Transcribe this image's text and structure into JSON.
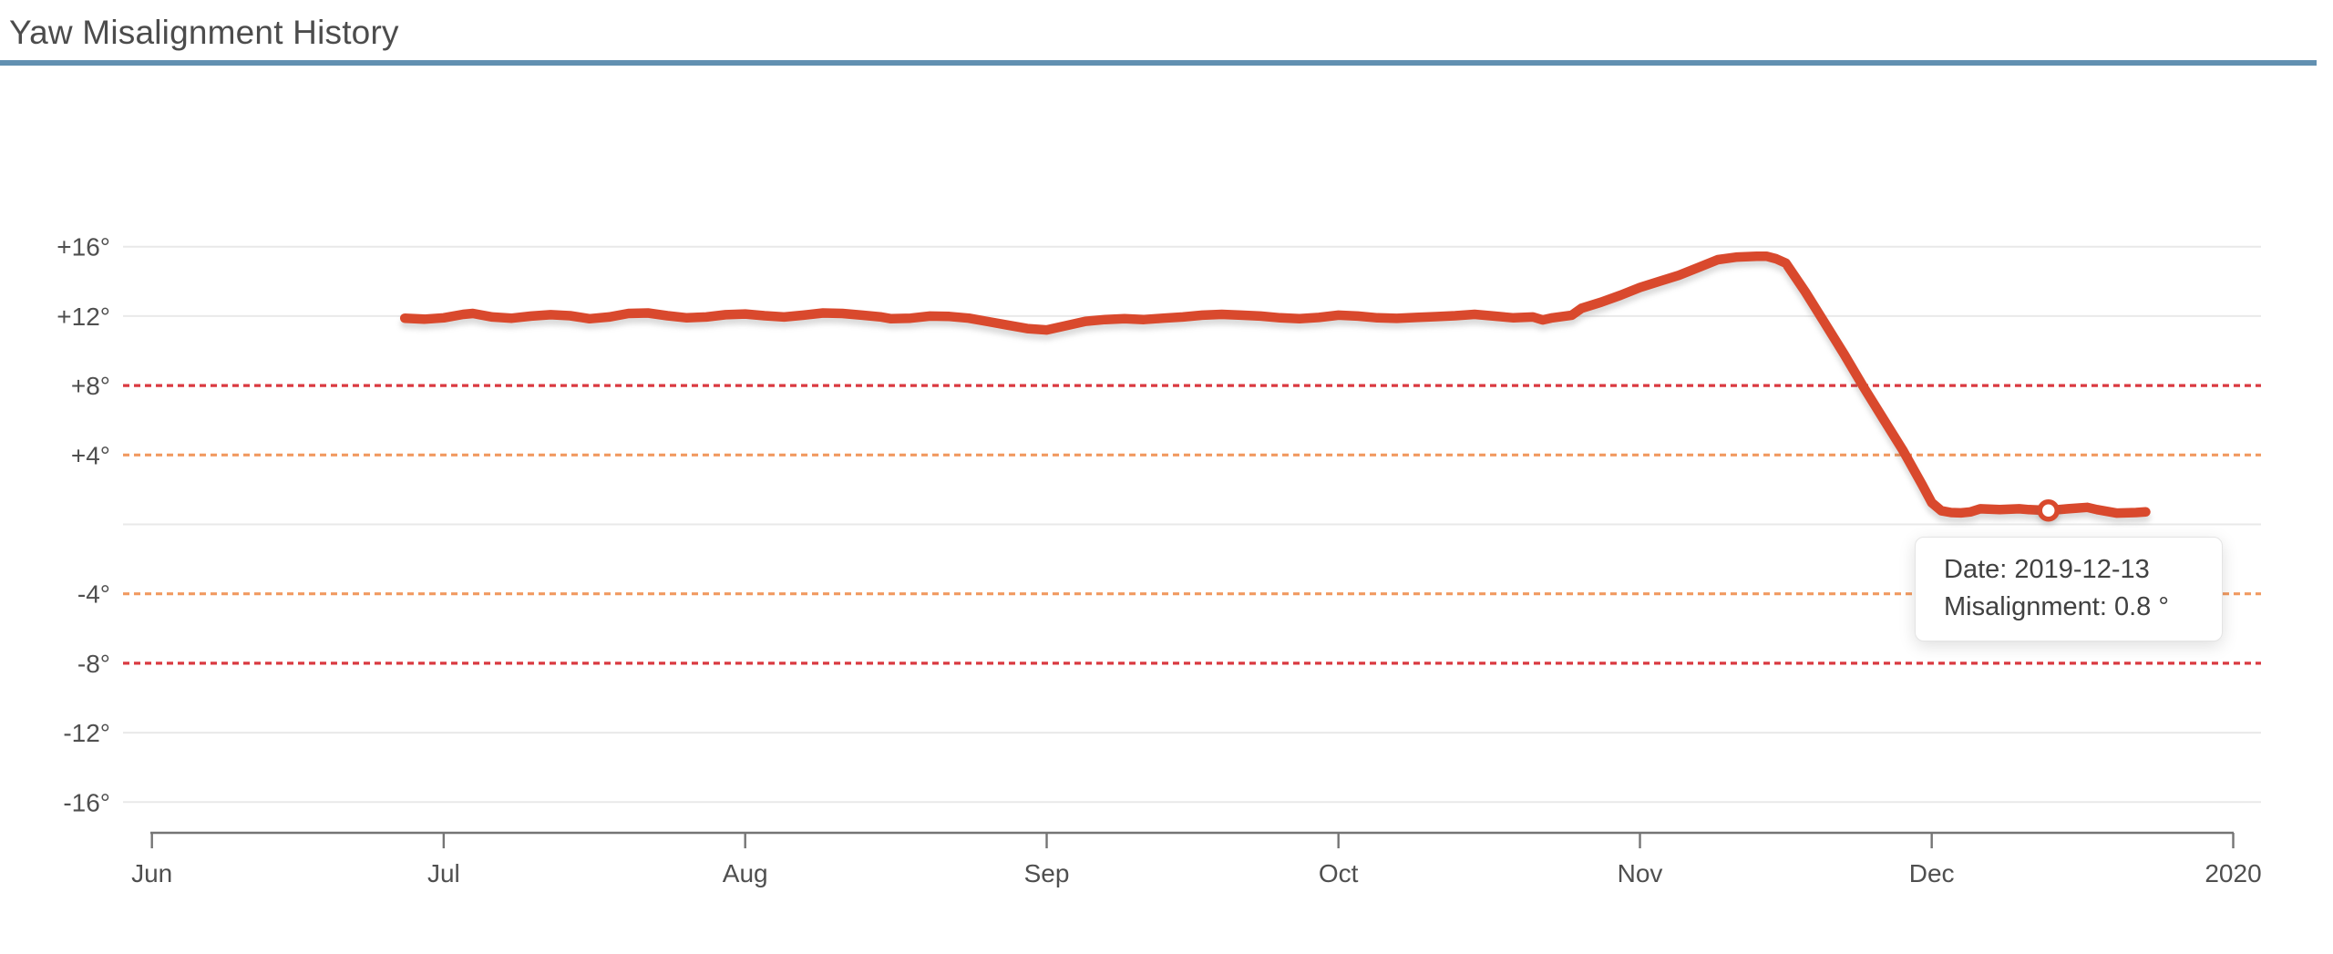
{
  "page": {
    "title": "Yaw Misalignment History"
  },
  "colors": {
    "title_underline": "#6290b1",
    "series_line": "#d9492d",
    "threshold_red": "#da3a41",
    "threshold_orange": "#f19a61",
    "gridline": "#e9e9e9",
    "axis": "#757575",
    "tick_label_text": "#4f4f4f",
    "title_text": "#4c4c4c",
    "tooltip_text": "#414141"
  },
  "chart_data": {
    "type": "line",
    "title": "Yaw Misalignment History",
    "x_axis": {
      "unit": "date",
      "start": "2019-06-01",
      "end": "2020-01-01",
      "ticks": [
        {
          "day": 0,
          "label": "Jun"
        },
        {
          "day": 30,
          "label": "Jul"
        },
        {
          "day": 61,
          "label": "Aug"
        },
        {
          "day": 92,
          "label": "Sep"
        },
        {
          "day": 122,
          "label": "Oct"
        },
        {
          "day": 153,
          "label": "Nov"
        },
        {
          "day": 183,
          "label": "Dec"
        },
        {
          "day": 214,
          "label": "2020"
        }
      ]
    },
    "y_axis": {
      "unit": "degrees",
      "min": -16,
      "max": 16,
      "ticks": [
        {
          "value": 16,
          "label": "+16°"
        },
        {
          "value": 12,
          "label": "+12°"
        },
        {
          "value": 8,
          "label": "+8°"
        },
        {
          "value": 4,
          "label": "+4°"
        },
        {
          "value": -4,
          "label": "-4°"
        },
        {
          "value": -8,
          "label": "-8°"
        },
        {
          "value": -12,
          "label": "-12°"
        },
        {
          "value": -16,
          "label": "-16°"
        }
      ]
    },
    "gridline_values": [
      16,
      12,
      0,
      -12,
      -16
    ],
    "thresholds": [
      {
        "value": 8,
        "color": "#da3a41",
        "style": "dashed"
      },
      {
        "value": 4,
        "color": "#f19a61",
        "style": "dashed"
      },
      {
        "value": -4,
        "color": "#f19a61",
        "style": "dashed"
      },
      {
        "value": -8,
        "color": "#da3a41",
        "style": "dashed"
      }
    ],
    "series": [
      {
        "name": "Yaw misalignment",
        "color": "#d9492d",
        "points": [
          [
            26,
            11.88
          ],
          [
            28,
            11.82
          ],
          [
            30,
            11.9
          ],
          [
            32,
            12.1
          ],
          [
            33,
            12.15
          ],
          [
            35,
            11.95
          ],
          [
            37,
            11.88
          ],
          [
            39,
            12.0
          ],
          [
            41,
            12.08
          ],
          [
            43,
            12.02
          ],
          [
            45,
            11.85
          ],
          [
            47,
            11.95
          ],
          [
            49,
            12.15
          ],
          [
            51,
            12.18
          ],
          [
            53,
            12.02
          ],
          [
            55,
            11.9
          ],
          [
            57,
            11.95
          ],
          [
            59,
            12.08
          ],
          [
            61,
            12.12
          ],
          [
            63,
            12.02
          ],
          [
            65,
            11.95
          ],
          [
            67,
            12.05
          ],
          [
            69,
            12.18
          ],
          [
            71,
            12.15
          ],
          [
            73,
            12.05
          ],
          [
            75,
            11.95
          ],
          [
            76,
            11.85
          ],
          [
            78,
            11.88
          ],
          [
            80,
            12.0
          ],
          [
            82,
            11.98
          ],
          [
            84,
            11.88
          ],
          [
            86,
            11.68
          ],
          [
            88,
            11.48
          ],
          [
            90,
            11.28
          ],
          [
            92,
            11.2
          ],
          [
            94,
            11.45
          ],
          [
            96,
            11.7
          ],
          [
            98,
            11.8
          ],
          [
            100,
            11.85
          ],
          [
            102,
            11.8
          ],
          [
            104,
            11.88
          ],
          [
            106,
            11.95
          ],
          [
            108,
            12.05
          ],
          [
            110,
            12.1
          ],
          [
            112,
            12.05
          ],
          [
            114,
            12.0
          ],
          [
            116,
            11.9
          ],
          [
            118,
            11.85
          ],
          [
            120,
            11.92
          ],
          [
            122,
            12.05
          ],
          [
            124,
            12.0
          ],
          [
            126,
            11.9
          ],
          [
            128,
            11.87
          ],
          [
            130,
            11.92
          ],
          [
            132,
            11.97
          ],
          [
            134,
            12.02
          ],
          [
            136,
            12.1
          ],
          [
            138,
            12.0
          ],
          [
            140,
            11.9
          ],
          [
            142,
            11.95
          ],
          [
            143,
            11.78
          ],
          [
            144,
            11.9
          ],
          [
            146,
            12.05
          ],
          [
            147,
            12.45
          ],
          [
            149,
            12.8
          ],
          [
            151,
            13.2
          ],
          [
            153,
            13.65
          ],
          [
            155,
            14.0
          ],
          [
            157,
            14.35
          ],
          [
            159,
            14.8
          ],
          [
            161,
            15.25
          ],
          [
            163,
            15.4
          ],
          [
            165,
            15.45
          ],
          [
            166,
            15.45
          ],
          [
            167,
            15.3
          ],
          [
            168,
            15.05
          ],
          [
            170,
            13.4
          ],
          [
            172,
            11.6
          ],
          [
            174,
            9.8
          ],
          [
            176,
            7.9
          ],
          [
            178,
            6.1
          ],
          [
            180,
            4.3
          ],
          [
            182,
            2.3
          ],
          [
            183,
            1.25
          ],
          [
            184,
            0.78
          ],
          [
            185,
            0.68
          ],
          [
            186,
            0.66
          ],
          [
            187,
            0.72
          ],
          [
            188,
            0.9
          ],
          [
            190,
            0.85
          ],
          [
            192,
            0.9
          ],
          [
            193,
            0.85
          ],
          [
            195,
            0.8
          ],
          [
            197,
            0.9
          ],
          [
            199,
            0.98
          ],
          [
            200,
            0.85
          ],
          [
            202,
            0.65
          ],
          [
            204,
            0.68
          ],
          [
            205,
            0.72
          ]
        ]
      }
    ],
    "highlight_point": {
      "date": "2019-12-13",
      "day": 195,
      "value": 0.8
    },
    "tooltip": {
      "date_label": "Date:",
      "date_value": "2019-12-13",
      "value_label": "Misalignment:",
      "value_text": "0.8 °"
    }
  }
}
